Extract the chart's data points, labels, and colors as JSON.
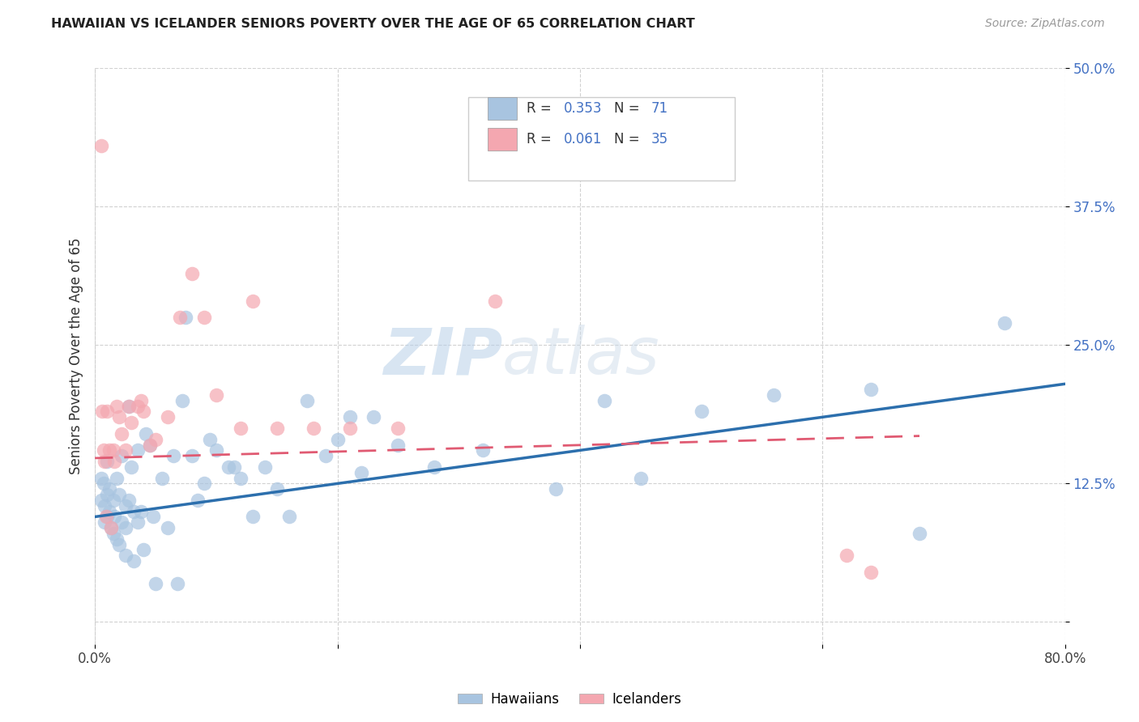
{
  "title": "HAWAIIAN VS ICELANDER SENIORS POVERTY OVER THE AGE OF 65 CORRELATION CHART",
  "source": "Source: ZipAtlas.com",
  "ylabel": "Seniors Poverty Over the Age of 65",
  "xlim": [
    0.0,
    0.8
  ],
  "ylim": [
    -0.02,
    0.5
  ],
  "xticks": [
    0.0,
    0.2,
    0.4,
    0.6,
    0.8
  ],
  "xticklabels": [
    "0.0%",
    "",
    "",
    "",
    "80.0%"
  ],
  "yticks": [
    0.0,
    0.125,
    0.25,
    0.375,
    0.5
  ],
  "yticklabels": [
    "",
    "12.5%",
    "25.0%",
    "37.5%",
    "50.0%"
  ],
  "hawaiians_R": 0.353,
  "hawaiians_N": 71,
  "icelanders_R": 0.061,
  "icelanders_N": 35,
  "hawaiian_color": "#a8c4e0",
  "icelander_color": "#f4a7b0",
  "hawaiian_line_color": "#2c6fad",
  "icelander_line_color": "#e05a72",
  "watermark_zip": "ZIP",
  "watermark_atlas": "atlas",
  "hawaiian_line_x": [
    0.0,
    0.8
  ],
  "hawaiian_line_y": [
    0.095,
    0.215
  ],
  "icelander_line_x": [
    0.0,
    0.68
  ],
  "icelander_line_y": [
    0.148,
    0.168
  ],
  "hawaiians_x": [
    0.005,
    0.005,
    0.007,
    0.008,
    0.008,
    0.01,
    0.01,
    0.01,
    0.012,
    0.012,
    0.013,
    0.015,
    0.015,
    0.016,
    0.018,
    0.018,
    0.02,
    0.02,
    0.022,
    0.022,
    0.025,
    0.025,
    0.025,
    0.028,
    0.028,
    0.03,
    0.032,
    0.032,
    0.035,
    0.035,
    0.038,
    0.04,
    0.042,
    0.045,
    0.048,
    0.05,
    0.055,
    0.06,
    0.065,
    0.068,
    0.072,
    0.075,
    0.08,
    0.085,
    0.09,
    0.095,
    0.1,
    0.11,
    0.115,
    0.12,
    0.13,
    0.14,
    0.15,
    0.16,
    0.175,
    0.19,
    0.2,
    0.21,
    0.22,
    0.23,
    0.25,
    0.28,
    0.32,
    0.38,
    0.42,
    0.45,
    0.5,
    0.56,
    0.64,
    0.68,
    0.75
  ],
  "hawaiians_y": [
    0.13,
    0.11,
    0.125,
    0.105,
    0.09,
    0.145,
    0.115,
    0.095,
    0.12,
    0.1,
    0.085,
    0.11,
    0.08,
    0.095,
    0.13,
    0.075,
    0.115,
    0.07,
    0.15,
    0.09,
    0.105,
    0.085,
    0.06,
    0.195,
    0.11,
    0.14,
    0.1,
    0.055,
    0.155,
    0.09,
    0.1,
    0.065,
    0.17,
    0.16,
    0.095,
    0.035,
    0.13,
    0.085,
    0.15,
    0.035,
    0.2,
    0.275,
    0.15,
    0.11,
    0.125,
    0.165,
    0.155,
    0.14,
    0.14,
    0.13,
    0.095,
    0.14,
    0.12,
    0.095,
    0.2,
    0.15,
    0.165,
    0.185,
    0.135,
    0.185,
    0.16,
    0.14,
    0.155,
    0.12,
    0.2,
    0.13,
    0.19,
    0.205,
    0.21,
    0.08,
    0.27
  ],
  "icelanders_x": [
    0.005,
    0.006,
    0.007,
    0.008,
    0.009,
    0.01,
    0.012,
    0.013,
    0.015,
    0.016,
    0.018,
    0.02,
    0.022,
    0.025,
    0.028,
    0.03,
    0.035,
    0.038,
    0.04,
    0.045,
    0.05,
    0.06,
    0.07,
    0.08,
    0.09,
    0.1,
    0.12,
    0.13,
    0.15,
    0.18,
    0.21,
    0.25,
    0.33,
    0.62,
    0.64
  ],
  "icelanders_y": [
    0.43,
    0.19,
    0.155,
    0.145,
    0.095,
    0.19,
    0.155,
    0.085,
    0.155,
    0.145,
    0.195,
    0.185,
    0.17,
    0.155,
    0.195,
    0.18,
    0.195,
    0.2,
    0.19,
    0.16,
    0.165,
    0.185,
    0.275,
    0.315,
    0.275,
    0.205,
    0.175,
    0.29,
    0.175,
    0.175,
    0.175,
    0.175,
    0.29,
    0.06,
    0.045
  ]
}
